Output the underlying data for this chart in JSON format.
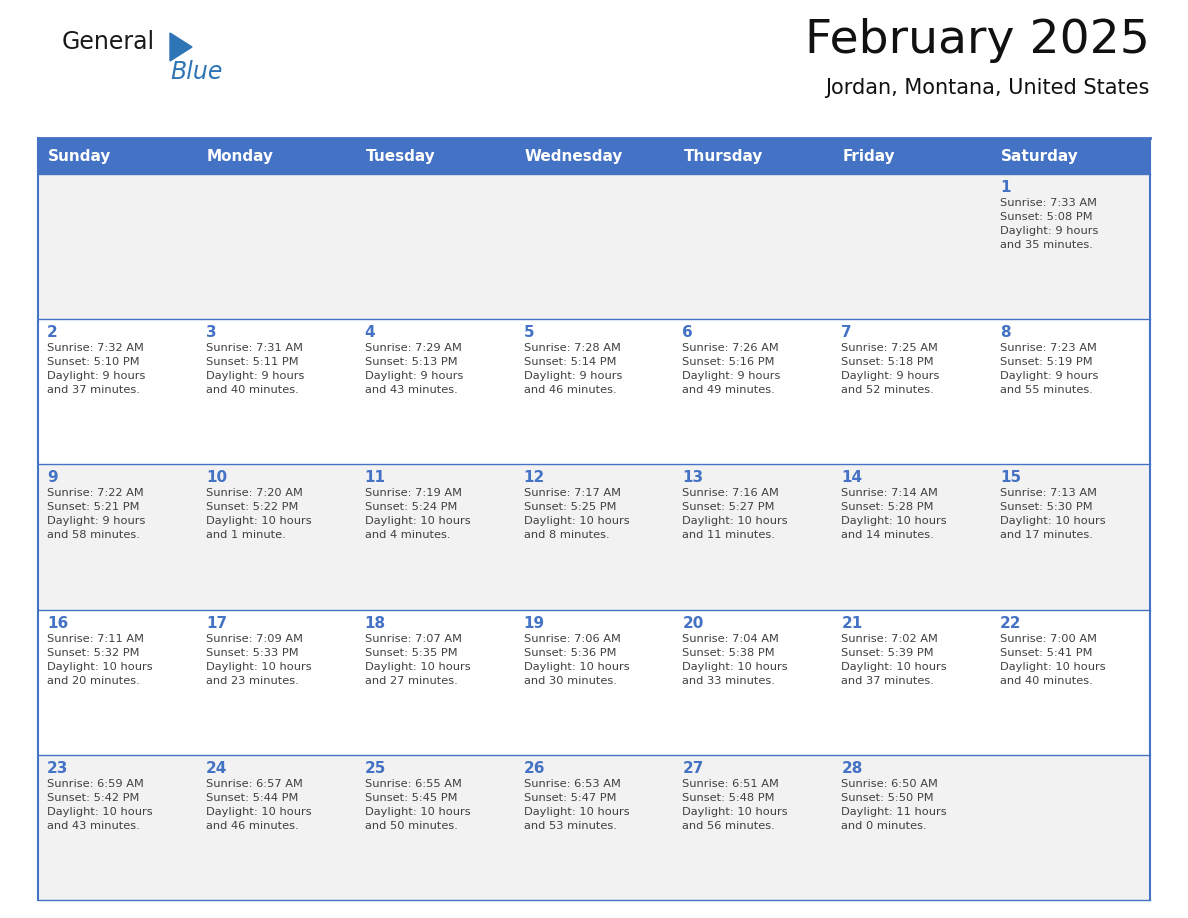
{
  "title": "February 2025",
  "subtitle": "Jordan, Montana, United States",
  "days_of_week": [
    "Sunday",
    "Monday",
    "Tuesday",
    "Wednesday",
    "Thursday",
    "Friday",
    "Saturday"
  ],
  "header_bg": "#4472C4",
  "header_text": "#FFFFFF",
  "cell_bg_odd": "#F2F2F2",
  "cell_bg_even": "#FFFFFF",
  "day_number_color": "#4472C4",
  "text_color": "#404040",
  "border_color": "#4472C4",
  "background_color": "#FFFFFF",
  "logo_general_color": "#1a1a1a",
  "logo_blue_color": "#2E75B6",
  "weeks": [
    [
      {
        "day": null,
        "info": null
      },
      {
        "day": null,
        "info": null
      },
      {
        "day": null,
        "info": null
      },
      {
        "day": null,
        "info": null
      },
      {
        "day": null,
        "info": null
      },
      {
        "day": null,
        "info": null
      },
      {
        "day": 1,
        "info": "Sunrise: 7:33 AM\nSunset: 5:08 PM\nDaylight: 9 hours\nand 35 minutes."
      }
    ],
    [
      {
        "day": 2,
        "info": "Sunrise: 7:32 AM\nSunset: 5:10 PM\nDaylight: 9 hours\nand 37 minutes."
      },
      {
        "day": 3,
        "info": "Sunrise: 7:31 AM\nSunset: 5:11 PM\nDaylight: 9 hours\nand 40 minutes."
      },
      {
        "day": 4,
        "info": "Sunrise: 7:29 AM\nSunset: 5:13 PM\nDaylight: 9 hours\nand 43 minutes."
      },
      {
        "day": 5,
        "info": "Sunrise: 7:28 AM\nSunset: 5:14 PM\nDaylight: 9 hours\nand 46 minutes."
      },
      {
        "day": 6,
        "info": "Sunrise: 7:26 AM\nSunset: 5:16 PM\nDaylight: 9 hours\nand 49 minutes."
      },
      {
        "day": 7,
        "info": "Sunrise: 7:25 AM\nSunset: 5:18 PM\nDaylight: 9 hours\nand 52 minutes."
      },
      {
        "day": 8,
        "info": "Sunrise: 7:23 AM\nSunset: 5:19 PM\nDaylight: 9 hours\nand 55 minutes."
      }
    ],
    [
      {
        "day": 9,
        "info": "Sunrise: 7:22 AM\nSunset: 5:21 PM\nDaylight: 9 hours\nand 58 minutes."
      },
      {
        "day": 10,
        "info": "Sunrise: 7:20 AM\nSunset: 5:22 PM\nDaylight: 10 hours\nand 1 minute."
      },
      {
        "day": 11,
        "info": "Sunrise: 7:19 AM\nSunset: 5:24 PM\nDaylight: 10 hours\nand 4 minutes."
      },
      {
        "day": 12,
        "info": "Sunrise: 7:17 AM\nSunset: 5:25 PM\nDaylight: 10 hours\nand 8 minutes."
      },
      {
        "day": 13,
        "info": "Sunrise: 7:16 AM\nSunset: 5:27 PM\nDaylight: 10 hours\nand 11 minutes."
      },
      {
        "day": 14,
        "info": "Sunrise: 7:14 AM\nSunset: 5:28 PM\nDaylight: 10 hours\nand 14 minutes."
      },
      {
        "day": 15,
        "info": "Sunrise: 7:13 AM\nSunset: 5:30 PM\nDaylight: 10 hours\nand 17 minutes."
      }
    ],
    [
      {
        "day": 16,
        "info": "Sunrise: 7:11 AM\nSunset: 5:32 PM\nDaylight: 10 hours\nand 20 minutes."
      },
      {
        "day": 17,
        "info": "Sunrise: 7:09 AM\nSunset: 5:33 PM\nDaylight: 10 hours\nand 23 minutes."
      },
      {
        "day": 18,
        "info": "Sunrise: 7:07 AM\nSunset: 5:35 PM\nDaylight: 10 hours\nand 27 minutes."
      },
      {
        "day": 19,
        "info": "Sunrise: 7:06 AM\nSunset: 5:36 PM\nDaylight: 10 hours\nand 30 minutes."
      },
      {
        "day": 20,
        "info": "Sunrise: 7:04 AM\nSunset: 5:38 PM\nDaylight: 10 hours\nand 33 minutes."
      },
      {
        "day": 21,
        "info": "Sunrise: 7:02 AM\nSunset: 5:39 PM\nDaylight: 10 hours\nand 37 minutes."
      },
      {
        "day": 22,
        "info": "Sunrise: 7:00 AM\nSunset: 5:41 PM\nDaylight: 10 hours\nand 40 minutes."
      }
    ],
    [
      {
        "day": 23,
        "info": "Sunrise: 6:59 AM\nSunset: 5:42 PM\nDaylight: 10 hours\nand 43 minutes."
      },
      {
        "day": 24,
        "info": "Sunrise: 6:57 AM\nSunset: 5:44 PM\nDaylight: 10 hours\nand 46 minutes."
      },
      {
        "day": 25,
        "info": "Sunrise: 6:55 AM\nSunset: 5:45 PM\nDaylight: 10 hours\nand 50 minutes."
      },
      {
        "day": 26,
        "info": "Sunrise: 6:53 AM\nSunset: 5:47 PM\nDaylight: 10 hours\nand 53 minutes."
      },
      {
        "day": 27,
        "info": "Sunrise: 6:51 AM\nSunset: 5:48 PM\nDaylight: 10 hours\nand 56 minutes."
      },
      {
        "day": 28,
        "info": "Sunrise: 6:50 AM\nSunset: 5:50 PM\nDaylight: 11 hours\nand 0 minutes."
      },
      {
        "day": null,
        "info": null
      }
    ]
  ]
}
